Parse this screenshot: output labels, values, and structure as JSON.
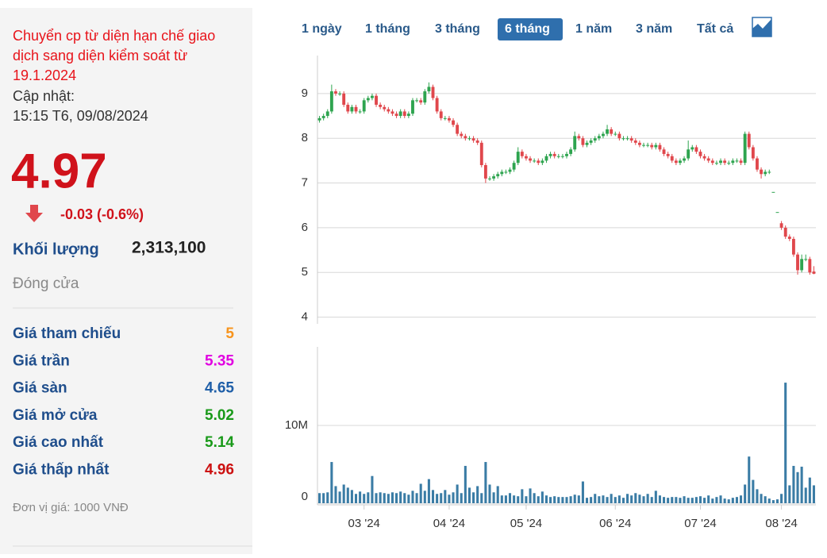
{
  "info": {
    "notice": "Chuyển cp từ diện hạn chế giao dịch sang diện kiểm soát từ 19.1.2024",
    "update_label": "Cập nhật:",
    "update_time": "15:15 T6, 09/08/2024",
    "price": "4.97",
    "change": "-0.03 (-0.6%)",
    "volume_label": "Khối lượng",
    "volume": "2,313,100",
    "status": "Đóng cửa",
    "rows": [
      {
        "label": "Giá tham chiếu",
        "value": "5",
        "color": "#f7941d"
      },
      {
        "label": "Giá trần",
        "value": "5.35",
        "color": "#e100e1"
      },
      {
        "label": "Giá sàn",
        "value": "4.65",
        "color": "#1f5fa8"
      },
      {
        "label": "Giá mở cửa",
        "value": "5.02",
        "color": "#1a9a1a"
      },
      {
        "label": "Giá cao nhất",
        "value": "5.14",
        "color": "#1a9a1a"
      },
      {
        "label": "Giá thấp nhất",
        "value": "4.96",
        "color": "#cc1111"
      }
    ],
    "unit": "Đơn vị giá: 1000 VNĐ"
  },
  "tabs": {
    "items": [
      "1 ngày",
      "1 tháng",
      "3 tháng",
      "6 tháng",
      "1 năm",
      "3 năm",
      "Tất cả"
    ],
    "active": 3
  },
  "chart_data": [
    {
      "type": "candlestick",
      "up_color": "#2ea44f",
      "down_color": "#e0474c",
      "grid": true,
      "categories": [
        null,
        null,
        null,
        null,
        null,
        null,
        null,
        null,
        null,
        null,
        null,
        null,
        null,
        null,
        null,
        null,
        null,
        null,
        null,
        null,
        null,
        null,
        null,
        null,
        null,
        null,
        null,
        null,
        null,
        null,
        null,
        null,
        null,
        null,
        null,
        null,
        null,
        null,
        null,
        null,
        null,
        null,
        null,
        null,
        null,
        null,
        null,
        null,
        null,
        null,
        null,
        null,
        null,
        null,
        null,
        null,
        null,
        null,
        null,
        null,
        null,
        null,
        null,
        null,
        null,
        null,
        null,
        null,
        null,
        null,
        null,
        null,
        null,
        null,
        null,
        null,
        null,
        null,
        null,
        null,
        null,
        null,
        null,
        null,
        null,
        null,
        null,
        null,
        null,
        null,
        null,
        null,
        null,
        null,
        null,
        null,
        null,
        null,
        null,
        null,
        null,
        null,
        null,
        null,
        null,
        null,
        null,
        null,
        null,
        null,
        null,
        null,
        null,
        null,
        null,
        null,
        null,
        null,
        null,
        null,
        null,
        null,
        null
      ],
      "open": [
        8.4,
        8.45,
        8.5,
        8.6,
        9.05,
        9.0,
        9.0,
        8.75,
        8.6,
        8.7,
        8.6,
        8.6,
        8.85,
        8.9,
        8.95,
        8.75,
        8.7,
        8.65,
        8.6,
        8.55,
        8.5,
        8.6,
        8.5,
        8.55,
        8.85,
        8.85,
        8.8,
        9.05,
        9.15,
        8.9,
        8.6,
        8.45,
        8.45,
        8.4,
        8.3,
        8.1,
        8.05,
        8.0,
        8.0,
        7.95,
        7.9,
        7.4,
        7.1,
        7.1,
        7.15,
        7.2,
        7.25,
        7.25,
        7.3,
        7.45,
        7.7,
        7.6,
        7.55,
        7.5,
        7.5,
        7.45,
        7.5,
        7.6,
        7.65,
        7.6,
        7.6,
        7.6,
        7.65,
        7.75,
        8.05,
        8.0,
        7.85,
        7.9,
        7.95,
        8.0,
        8.05,
        8.1,
        8.2,
        8.1,
        8.1,
        8.0,
        8.0,
        8.0,
        7.95,
        7.9,
        7.85,
        7.85,
        7.85,
        7.8,
        7.85,
        7.75,
        7.65,
        7.6,
        7.5,
        7.45,
        7.5,
        7.55,
        7.75,
        7.8,
        7.7,
        7.6,
        7.55,
        7.5,
        7.45,
        7.45,
        7.5,
        7.45,
        7.45,
        7.5,
        7.5,
        7.45,
        8.1,
        7.8,
        7.55,
        7.3,
        7.2,
        7.25,
        6.8,
        6.35,
        6.1,
        6.0,
        5.8,
        5.75,
        5.4,
        5.05,
        5.3,
        5.3,
        5.02
      ],
      "high": [
        8.5,
        8.55,
        8.65,
        9.2,
        9.1,
        9.05,
        9.05,
        8.8,
        8.75,
        8.75,
        8.65,
        8.9,
        8.95,
        9.0,
        9.0,
        8.8,
        8.75,
        8.7,
        8.65,
        8.6,
        8.65,
        8.65,
        8.6,
        8.9,
        8.9,
        8.9,
        9.1,
        9.25,
        9.2,
        8.95,
        8.65,
        8.5,
        8.5,
        8.45,
        8.35,
        8.15,
        8.1,
        8.05,
        8.05,
        8.0,
        7.95,
        7.45,
        7.15,
        7.2,
        7.25,
        7.3,
        7.3,
        7.35,
        7.5,
        7.8,
        7.75,
        7.65,
        7.6,
        7.55,
        7.55,
        7.55,
        7.65,
        7.7,
        7.7,
        7.65,
        7.65,
        7.7,
        7.8,
        8.15,
        8.1,
        8.05,
        7.95,
        8.0,
        8.05,
        8.1,
        8.15,
        8.3,
        8.25,
        8.15,
        8.15,
        8.05,
        8.05,
        8.05,
        8.0,
        7.95,
        7.9,
        7.9,
        7.9,
        7.9,
        7.9,
        7.8,
        7.7,
        7.65,
        7.55,
        7.55,
        7.6,
        7.95,
        7.85,
        7.85,
        7.75,
        7.65,
        7.6,
        7.55,
        7.5,
        7.55,
        7.55,
        7.5,
        7.55,
        7.55,
        7.55,
        8.15,
        8.15,
        7.85,
        7.6,
        7.35,
        7.3,
        7.3,
        6.8,
        6.35,
        6.15,
        6.05,
        5.85,
        5.8,
        5.45,
        5.4,
        5.4,
        5.35,
        5.14
      ],
      "low": [
        8.35,
        8.4,
        8.45,
        8.55,
        8.95,
        8.95,
        8.7,
        8.55,
        8.55,
        8.55,
        8.55,
        8.55,
        8.8,
        8.85,
        8.7,
        8.65,
        8.6,
        8.55,
        8.5,
        8.45,
        8.45,
        8.45,
        8.45,
        8.5,
        8.8,
        8.75,
        8.75,
        9.0,
        8.85,
        8.55,
        8.4,
        8.4,
        8.35,
        8.25,
        8.05,
        8.0,
        7.95,
        7.95,
        7.9,
        7.85,
        7.35,
        7.0,
        7.05,
        7.05,
        7.1,
        7.15,
        7.2,
        7.2,
        7.25,
        7.4,
        7.55,
        7.5,
        7.45,
        7.45,
        7.4,
        7.4,
        7.45,
        7.55,
        7.55,
        7.55,
        7.55,
        7.55,
        7.6,
        7.7,
        7.95,
        7.8,
        7.8,
        7.85,
        7.9,
        7.95,
        8.0,
        8.05,
        8.05,
        8.05,
        7.95,
        7.95,
        7.95,
        7.9,
        7.85,
        7.8,
        7.8,
        7.8,
        7.75,
        7.75,
        7.7,
        7.6,
        7.55,
        7.45,
        7.4,
        7.4,
        7.45,
        7.5,
        7.7,
        7.65,
        7.55,
        7.5,
        7.45,
        7.4,
        7.4,
        7.4,
        7.4,
        7.4,
        7.4,
        7.45,
        7.4,
        7.4,
        7.75,
        7.5,
        7.25,
        7.1,
        7.15,
        7.2,
        6.8,
        6.35,
        5.95,
        5.75,
        5.7,
        5.35,
        4.95,
        5.0,
        5.25,
        4.95,
        4.96
      ],
      "close": [
        8.45,
        8.5,
        8.6,
        9.05,
        9.0,
        9.0,
        8.75,
        8.6,
        8.7,
        8.6,
        8.6,
        8.85,
        8.9,
        8.95,
        8.75,
        8.7,
        8.65,
        8.6,
        8.55,
        8.5,
        8.6,
        8.5,
        8.55,
        8.85,
        8.85,
        8.8,
        9.05,
        9.15,
        8.9,
        8.6,
        8.45,
        8.45,
        8.4,
        8.3,
        8.1,
        8.05,
        8.0,
        8.0,
        7.95,
        7.9,
        7.4,
        7.1,
        7.1,
        7.15,
        7.2,
        7.25,
        7.25,
        7.3,
        7.45,
        7.7,
        7.6,
        7.55,
        7.5,
        7.5,
        7.45,
        7.5,
        7.6,
        7.65,
        7.6,
        7.6,
        7.6,
        7.65,
        7.75,
        8.05,
        8.0,
        7.85,
        7.9,
        7.95,
        8.0,
        8.05,
        8.1,
        8.2,
        8.1,
        8.1,
        8.0,
        8.0,
        8.0,
        7.95,
        7.9,
        7.85,
        7.85,
        7.85,
        7.8,
        7.85,
        7.75,
        7.65,
        7.6,
        7.5,
        7.45,
        7.5,
        7.55,
        7.75,
        7.8,
        7.7,
        7.6,
        7.55,
        7.5,
        7.45,
        7.45,
        7.5,
        7.45,
        7.45,
        7.5,
        7.5,
        7.45,
        8.1,
        7.8,
        7.55,
        7.3,
        7.2,
        7.25,
        7.25,
        6.8,
        6.35,
        6.0,
        5.8,
        5.75,
        5.4,
        5.05,
        5.3,
        5.3,
        5.0,
        4.97
      ],
      "ylim": [
        3.85,
        9.85
      ],
      "yticks": [
        4,
        5,
        6,
        7,
        8,
        9
      ]
    },
    {
      "type": "bar",
      "color": "#3a7ca5",
      "grid": true,
      "categories": [
        null,
        null,
        null,
        null,
        null,
        null,
        null,
        null,
        null,
        null,
        null,
        null,
        null,
        null,
        null,
        null,
        null,
        null,
        null,
        null,
        null,
        null,
        null,
        null,
        null,
        null,
        null,
        null,
        null,
        null,
        null,
        null,
        null,
        null,
        null,
        null,
        null,
        null,
        null,
        null,
        null,
        null,
        null,
        null,
        null,
        null,
        null,
        null,
        null,
        null,
        null,
        null,
        null,
        null,
        null,
        null,
        null,
        null,
        null,
        null,
        null,
        null,
        null,
        null,
        null,
        null,
        null,
        null,
        null,
        null,
        null,
        null,
        null,
        null,
        null,
        null,
        null,
        null,
        null,
        null,
        null,
        null,
        null,
        null,
        null,
        null,
        null,
        null,
        null,
        null,
        null,
        null,
        null,
        null,
        null,
        null,
        null,
        null,
        null,
        null,
        null,
        null,
        null,
        null,
        null,
        null,
        null,
        null,
        null,
        null,
        null,
        null,
        null,
        null,
        null,
        null,
        null,
        null,
        null,
        null,
        null,
        null,
        null
      ],
      "values": [
        1.3,
        1.3,
        1.4,
        5.3,
        2.2,
        1.5,
        2.4,
        2.0,
        1.7,
        1.2,
        1.5,
        1.2,
        1.4,
        3.5,
        1.3,
        1.4,
        1.3,
        1.2,
        1.4,
        1.3,
        1.5,
        1.3,
        1.1,
        1.6,
        1.3,
        2.5,
        1.6,
        3.1,
        1.7,
        1.2,
        1.3,
        1.7,
        1.1,
        1.4,
        2.4,
        1.3,
        4.8,
        2.0,
        1.4,
        2.2,
        1.3,
        5.3,
        2.4,
        1.4,
        2.2,
        1.0,
        1.0,
        1.3,
        1.0,
        0.9,
        1.8,
        0.9,
        1.9,
        1.3,
        0.9,
        1.5,
        1.0,
        0.8,
        0.9,
        0.8,
        0.8,
        0.8,
        0.9,
        1.1,
        1.0,
        2.8,
        0.7,
        0.8,
        1.2,
        0.9,
        1.0,
        0.8,
        1.2,
        0.8,
        1.0,
        0.7,
        1.2,
        1.0,
        1.3,
        1.1,
        0.9,
        1.2,
        0.8,
        1.6,
        1.0,
        0.8,
        0.7,
        0.8,
        0.8,
        0.7,
        0.9,
        0.7,
        0.7,
        0.8,
        0.9,
        0.7,
        1.0,
        0.6,
        0.8,
        1.0,
        0.6,
        0.5,
        0.7,
        0.8,
        1.0,
        2.4,
        6.0,
        3.0,
        1.8,
        1.2,
        0.9,
        0.6,
        0.4,
        0.5,
        1.2,
        15.5,
        2.3,
        4.8,
        4.0,
        4.7,
        2.0,
        3.3,
        2.3
      ],
      "ylim": [
        0,
        20.1
      ],
      "yticks": [
        0,
        {
          "value": 10,
          "label": "10M"
        }
      ],
      "xticks": [
        {
          "value": 11,
          "label": "03 '24"
        },
        {
          "value": 32,
          "label": "04 '24"
        },
        {
          "value": 51,
          "label": "05 '24"
        },
        {
          "value": 73,
          "label": "06 '24"
        },
        {
          "value": 94,
          "label": "07 '24"
        },
        {
          "value": 114,
          "label": "08 '24"
        }
      ]
    }
  ]
}
